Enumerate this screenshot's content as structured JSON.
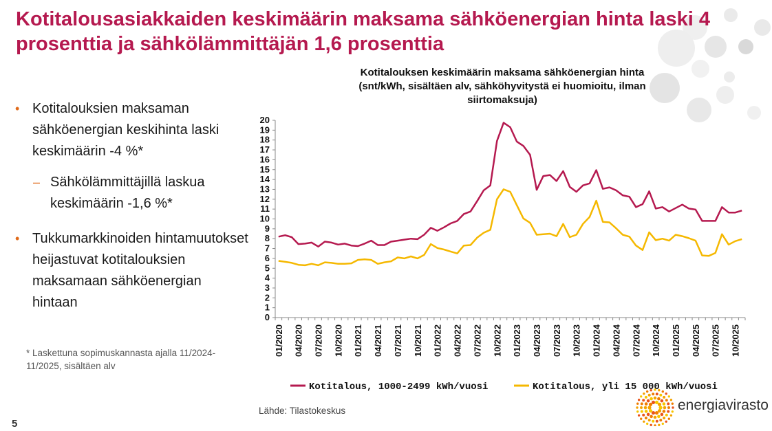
{
  "slide": {
    "title": "Kotitalousasiakkaiden keskimäärin maksama sähköenergian hinta laski 4 prosenttia ja sähkölämmittäjän 1,6 prosenttia",
    "bullets": [
      "Kotitalouksien maksaman sähköenergian keskihinta laski keskimäärin -4 %*",
      "Sähkölämmittäjillä laskua keskimäärin -1,6 %*",
      "Tukkumarkkinoiden hintamuutokset heijastuvat kotitalouksien maksamaan sähköenergian hintaan"
    ],
    "bullet_marks": [
      "•",
      "–",
      "•"
    ],
    "footnote": "* Laskettuna sopimuskannasta ajalla 11/2024-11/2025, sisältäen alv",
    "page_number": "5",
    "source": "Lähde: Tilastokeskus",
    "logo_text": "energiavirasto"
  },
  "colors": {
    "title": "#b5194f",
    "series1": "#b5194f",
    "series2": "#f5b800",
    "bullet": "#e06a1a"
  },
  "chart_data": {
    "type": "line",
    "title_lines": [
      "Kotitalouksen keskimäärin maksama sähköenergian hinta",
      "(snt/kWh, sisältäen alv, sähköhyvitystä ei huomioitu, ilman",
      "siirtomaksuja)"
    ],
    "ylim": [
      0,
      20
    ],
    "yticks": [
      0,
      1,
      2,
      3,
      4,
      5,
      6,
      7,
      8,
      9,
      10,
      11,
      12,
      13,
      14,
      15,
      16,
      17,
      18,
      19,
      20
    ],
    "xtick_labels": [
      "01/2020",
      "04/2020",
      "07/2020",
      "10/2020",
      "01/2021",
      "04/2021",
      "07/2021",
      "10/2021",
      "01/2022",
      "04/2022",
      "07/2022",
      "10/2022",
      "01/2023",
      "04/2023",
      "07/2023",
      "10/2023",
      "01/2024",
      "04/2024",
      "07/2024",
      "10/2024",
      "01/2025",
      "04/2025",
      "07/2025",
      "10/2025"
    ],
    "x_start": "01/2020",
    "months": 71,
    "series": [
      {
        "name": "Kotitalous, 1000-2499 kWh/vuosi",
        "values": [
          8.2,
          8.35,
          8.15,
          7.45,
          7.5,
          7.6,
          7.2,
          7.7,
          7.6,
          7.4,
          7.5,
          7.3,
          7.25,
          7.5,
          7.8,
          7.35,
          7.35,
          7.7,
          7.8,
          7.9,
          8.0,
          7.95,
          8.4,
          9.1,
          8.8,
          9.15,
          9.55,
          9.8,
          10.5,
          10.75,
          11.8,
          12.9,
          13.4,
          17.9,
          19.75,
          19.3,
          17.85,
          17.4,
          16.5,
          12.95,
          14.35,
          14.45,
          13.85,
          14.85,
          13.25,
          12.75,
          13.4,
          13.6,
          14.95,
          13.05,
          13.2,
          12.9,
          12.4,
          12.25,
          11.2,
          11.5,
          12.8,
          11.05,
          11.2,
          10.75,
          11.1,
          11.45,
          11.05,
          10.95,
          9.8,
          9.8,
          9.8,
          11.2,
          10.65,
          10.65,
          10.85
        ]
      },
      {
        "name": "Kotitalous, yli 15 000 kWh/vuosi",
        "values": [
          5.75,
          5.65,
          5.55,
          5.35,
          5.3,
          5.45,
          5.3,
          5.6,
          5.55,
          5.45,
          5.45,
          5.5,
          5.85,
          5.9,
          5.85,
          5.45,
          5.6,
          5.7,
          6.1,
          6.0,
          6.2,
          6.0,
          6.35,
          7.45,
          7.05,
          6.9,
          6.7,
          6.5,
          7.3,
          7.35,
          8.1,
          8.6,
          8.9,
          12.0,
          13.0,
          12.75,
          11.4,
          10.05,
          9.6,
          8.4,
          8.45,
          8.5,
          8.25,
          9.5,
          8.15,
          8.4,
          9.5,
          10.2,
          11.85,
          9.7,
          9.65,
          9.05,
          8.4,
          8.2,
          7.3,
          6.85,
          8.65,
          7.85,
          8.0,
          7.8,
          8.4,
          8.25,
          8.05,
          7.8,
          6.3,
          6.25,
          6.55,
          8.45,
          7.4,
          7.75,
          7.95
        ]
      }
    ]
  }
}
